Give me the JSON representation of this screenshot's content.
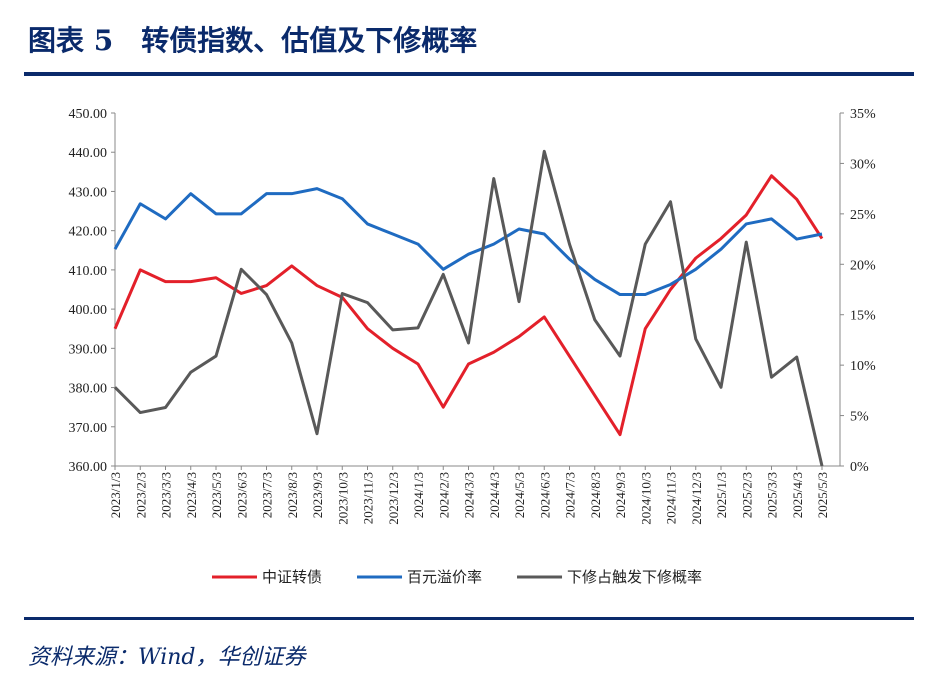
{
  "chart_data": {
    "type": "line",
    "title": "图表 5　转债指数、估值及下修概率",
    "source": "资料来源：Wind，华创证券",
    "categories": [
      "2023/1/3",
      "2023/2/3",
      "2023/3/3",
      "2023/4/3",
      "2023/5/3",
      "2023/6/3",
      "2023/7/3",
      "2023/8/3",
      "2023/9/3",
      "2023/10/3",
      "2023/11/3",
      "2023/12/3",
      "2024/1/3",
      "2024/2/3",
      "2024/3/3",
      "2024/4/3",
      "2024/5/3",
      "2024/6/3",
      "2024/7/3",
      "2024/8/3",
      "2024/9/3",
      "2024/10/3",
      "2024/11/3",
      "2024/12/3",
      "2025/1/3",
      "2025/2/3",
      "2025/3/3",
      "2025/4/3",
      "2025/5/3"
    ],
    "series": [
      {
        "name": "中证转债",
        "color": "#e3202a",
        "values": [
          395,
          410,
          407,
          407,
          408,
          404,
          406,
          411,
          406,
          403,
          395,
          390,
          386,
          375,
          386,
          389,
          393,
          398,
          388,
          378,
          368,
          395,
          405,
          413,
          418,
          424,
          434,
          428,
          418
        ]
      },
      {
        "name": "百元溢价率",
        "color": "#1f6bc1",
        "axis": "y2",
        "values": [
          21.5,
          26,
          24.5,
          27,
          25,
          25,
          27,
          27,
          27.5,
          26.5,
          24,
          23,
          22,
          19.5,
          21,
          22,
          23.5,
          23,
          20.5,
          18.5,
          17,
          17,
          18,
          19.5,
          21.5,
          24,
          24.5,
          22.5,
          23
        ]
      },
      {
        "name": "下修占触发下修概率",
        "color": "#595959",
        "axis": "y2",
        "values": [
          7.8,
          5.3,
          5.8,
          9.3,
          10.9,
          19.5,
          17,
          12.2,
          3.2,
          17.1,
          16.2,
          13.5,
          13.7,
          19,
          12.2,
          28.5,
          16.3,
          31.2,
          22,
          14.5,
          10.9,
          22,
          26.2,
          12.6,
          7.8,
          22.2,
          8.8,
          10.8,
          0
        ]
      }
    ],
    "ylim": [
      360,
      450
    ],
    "yticks": [
      {
        "value": 360,
        "label": "360.00"
      },
      {
        "value": 370,
        "label": "370.00"
      },
      {
        "value": 380,
        "label": "380.00"
      },
      {
        "value": 390,
        "label": "390.00"
      },
      {
        "value": 400,
        "label": "400.00"
      },
      {
        "value": 410,
        "label": "410.00"
      },
      {
        "value": 420,
        "label": "420.00"
      },
      {
        "value": 430,
        "label": "430.00"
      },
      {
        "value": 440,
        "label": "440.00"
      },
      {
        "value": 450,
        "label": "450.00"
      }
    ],
    "y2lim": [
      0,
      35
    ],
    "y2ticks": [
      {
        "value": 0,
        "label": "0%"
      },
      {
        "value": 5,
        "label": "5%"
      },
      {
        "value": 10,
        "label": "10%"
      },
      {
        "value": 15,
        "label": "15%"
      },
      {
        "value": 20,
        "label": "20%"
      },
      {
        "value": 25,
        "label": "25%"
      },
      {
        "value": 30,
        "label": "30%"
      },
      {
        "value": 35,
        "label": "35%"
      }
    ],
    "legend": "bottom"
  }
}
